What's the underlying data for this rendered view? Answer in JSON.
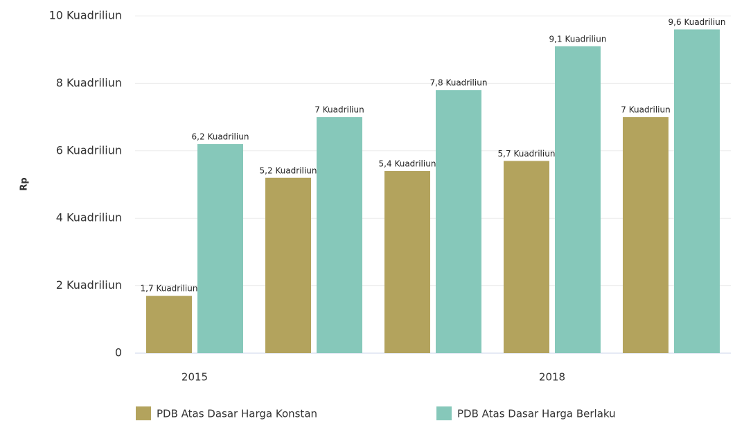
{
  "chart_data": {
    "type": "bar",
    "categories": [
      "2015",
      null,
      null,
      "2018",
      null
    ],
    "y_label": "Rp",
    "series": [
      {
        "name": "PDB Atas Dasar Harga Konstan",
        "color": "#b3a35d",
        "values": [
          1.7,
          5.2,
          5.4,
          5.7,
          7
        ],
        "value_labels": [
          "1,7 Kuadriliun",
          "5,2 Kuadriliun",
          "5,4 Kuadriliun",
          "5,7 Kuadriliun",
          "7 Kuadriliun"
        ]
      },
      {
        "name": "PDB Atas Dasar Harga Berlaku",
        "color": "#86c8ba",
        "values": [
          6.2,
          7,
          7.8,
          9.1,
          9.6
        ],
        "value_labels": [
          "6,2 Kuadriliun",
          "7 Kuadriliun",
          "7,8 Kuadriliun",
          "9,1 Kuadriliun",
          "9,6 Kuadriliun"
        ]
      }
    ],
    "ylim": [
      0,
      10
    ],
    "yticks": [
      0,
      {
        "value": 2,
        "label": "2 Kuadriliun"
      },
      {
        "value": 4,
        "label": "4 Kuadriliun"
      },
      {
        "value": 6,
        "label": "6 Kuadriliun"
      },
      {
        "value": 8,
        "label": "8 Kuadriliun"
      },
      {
        "value": 10,
        "label": "10 Kuadriliun"
      }
    ],
    "grid": true
  }
}
